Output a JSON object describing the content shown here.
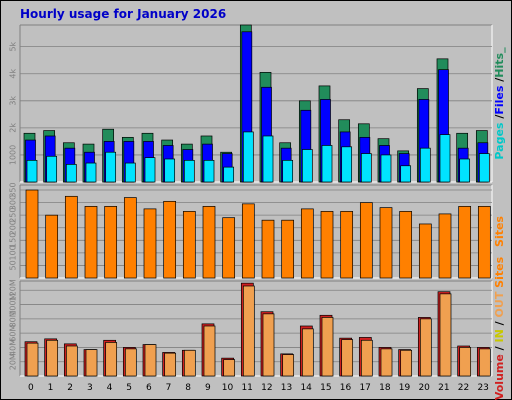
{
  "title": "Hourly usage for January 2026",
  "colors": {
    "background": "#c0c0c0",
    "frame_dark": "#808080",
    "hits": "#218c5b",
    "files": "#0000ff",
    "pages": "#00e3ff",
    "sites": "#ff8000",
    "kbytes_in": "#d02020",
    "kbytes_out": "#f0a050"
  },
  "chart_data": [
    {
      "type": "bar",
      "name": "pages-files-hits",
      "categories": [
        "0",
        "1",
        "2",
        "3",
        "4",
        "5",
        "6",
        "7",
        "8",
        "9",
        "10",
        "11",
        "12",
        "13",
        "14",
        "15",
        "16",
        "17",
        "18",
        "19",
        "20",
        "21",
        "22",
        "23"
      ],
      "ylim": [
        0,
        5800
      ],
      "ticks": [
        "1000",
        "2k",
        "3k",
        "4k",
        "5k"
      ],
      "tick_values": [
        1000,
        2000,
        3000,
        4000,
        5000
      ],
      "legend_parts": [
        {
          "text": "Pages",
          "color": "#00c8c8"
        },
        {
          "text": " /",
          "color": "#000000"
        },
        {
          "text": "Files",
          "color": "#0000ff"
        },
        {
          "text": " /",
          "color": "#000000"
        },
        {
          "text": "Hits_",
          "color": "#218c5b"
        }
      ],
      "series": [
        {
          "name": "Hits",
          "values": [
            1800,
            1900,
            1450,
            1400,
            1950,
            1650,
            1800,
            1550,
            1400,
            1700,
            1100,
            5800,
            4050,
            1450,
            3000,
            3550,
            2300,
            2150,
            1600,
            1150,
            3450,
            4550,
            1800,
            1900
          ]
        },
        {
          "name": "Files",
          "values": [
            1550,
            1700,
            1250,
            1100,
            1500,
            1500,
            1500,
            1350,
            1200,
            1400,
            1050,
            5550,
            3500,
            1250,
            2650,
            3050,
            1850,
            1650,
            1350,
            1050,
            3050,
            4150,
            1250,
            1450
          ]
        },
        {
          "name": "Pages",
          "values": [
            800,
            950,
            650,
            700,
            1100,
            700,
            900,
            850,
            800,
            800,
            550,
            1850,
            1700,
            800,
            1200,
            1350,
            1300,
            1050,
            1000,
            600,
            1250,
            1750,
            850,
            1050
          ]
        }
      ]
    },
    {
      "type": "bar",
      "name": "sites",
      "categories": [
        "0",
        "1",
        "2",
        "3",
        "4",
        "5",
        "6",
        "7",
        "8",
        "9",
        "10",
        "11",
        "12",
        "13",
        "14",
        "15",
        "16",
        "17",
        "18",
        "19",
        "20",
        "21",
        "22",
        "23"
      ],
      "ylim": [
        0,
        370
      ],
      "ticks": [
        "50",
        "100",
        "150",
        "200",
        "250",
        "300",
        "350"
      ],
      "tick_values": [
        50,
        100,
        150,
        200,
        250,
        300,
        350
      ],
      "legend_parts": [
        {
          "text": "Sites",
          "color": "#ff8000"
        }
      ],
      "series": [
        {
          "name": "Sites",
          "values": [
            350,
            250,
            325,
            285,
            285,
            320,
            275,
            305,
            265,
            285,
            240,
            295,
            230,
            230,
            275,
            265,
            265,
            300,
            280,
            265,
            215,
            255,
            285,
            285
          ]
        }
      ]
    },
    {
      "type": "bar",
      "name": "volume",
      "categories": [
        "0",
        "1",
        "2",
        "3",
        "4",
        "5",
        "6",
        "7",
        "8",
        "9",
        "10",
        "11",
        "12",
        "13",
        "14",
        "15",
        "16",
        "17",
        "18",
        "19",
        "20",
        "21",
        "22",
        "23"
      ],
      "ylim": [
        0,
        133
      ],
      "ticks": [
        "20M",
        "40M",
        "60M",
        "80M",
        "100M",
        "120M"
      ],
      "tick_values": [
        20,
        40,
        60,
        80,
        100,
        120
      ],
      "legend_parts": [
        {
          "text": "Volume",
          "color": "#d02020"
        },
        {
          "text": " / ",
          "color": "#000000"
        },
        {
          "text": "IN",
          "color": "#c8c800"
        },
        {
          "text": " / ",
          "color": "#000000"
        },
        {
          "text": "OUT",
          "color": "#f0a050"
        },
        {
          "text": " ",
          "color": "#000000"
        },
        {
          "text": "Sites",
          "color": "#ff8000"
        }
      ],
      "series": [
        {
          "name": "Volume",
          "values": [
            48,
            52,
            45,
            37,
            50,
            40,
            44,
            33,
            36,
            73,
            25,
            130,
            90,
            31,
            70,
            85,
            53,
            54,
            40,
            37,
            82,
            118,
            42,
            40
          ]
        },
        {
          "name": "OUT",
          "values": [
            46,
            50,
            42,
            37,
            47,
            38,
            44,
            32,
            36,
            70,
            23,
            126,
            87,
            30,
            66,
            82,
            51,
            50,
            38,
            36,
            80,
            115,
            40,
            38
          ]
        }
      ]
    }
  ]
}
